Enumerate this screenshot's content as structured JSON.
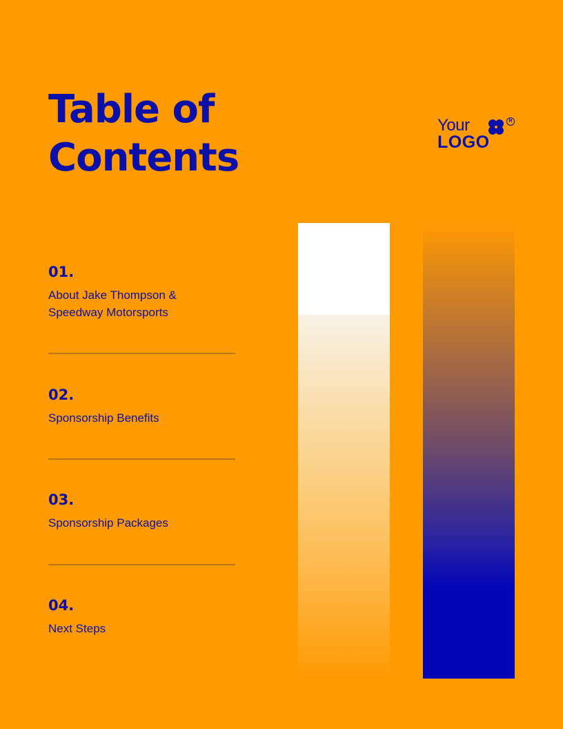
{
  "page": {
    "title": "Table of\nContents",
    "background_color": "#FF9A00",
    "accent_color": "#0A10A8"
  },
  "logo": {
    "line1": "Your",
    "line2": "LOGO",
    "registered_mark": "R",
    "icon": "four-petal-flower-icon"
  },
  "toc": {
    "items": [
      {
        "number": "01.",
        "label": "About Jake Thompson &\nSpeedway Motorsports"
      },
      {
        "number": "02.",
        "label": "Sponsorship Benefits"
      },
      {
        "number": "03.",
        "label": "Sponsorship Packages"
      },
      {
        "number": "04.",
        "label": "Next Steps"
      }
    ]
  },
  "decor": {
    "left_bar_colors": [
      "#FFFFFF",
      "#FF9A00"
    ],
    "right_bar_colors": [
      "#FF9A00",
      "#0005B6"
    ]
  }
}
